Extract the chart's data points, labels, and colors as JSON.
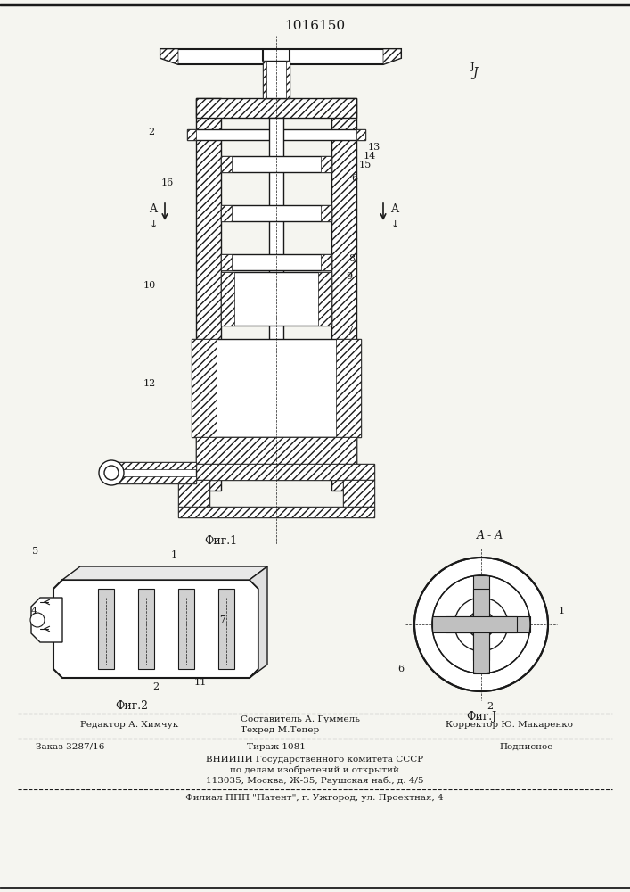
{
  "patent_number": "1016150",
  "background_color": "#f5f5f0",
  "line_color": "#1a1a1a",
  "hatch_color": "#1a1a1a",
  "fig_label1": "Фиг.1",
  "fig_label2": "Фиг.2",
  "fig_label3": "Фиг.J",
  "section_label": "A - A",
  "footer_lines": [
    [
      "Редактор А. Химчук",
      "Составитель А. Гуммель",
      "Корректор Ю. Макаренко"
    ],
    [
      "Техред М.Тепер",
      "",
      ""
    ],
    [
      "Заказ 3287/16",
      "Тираж 1081",
      "Подписное"
    ],
    [
      "ВНИИПИ Государственного комитета СССР",
      "",
      ""
    ],
    [
      "по делам изобретений и открытий",
      "",
      ""
    ],
    [
      "113035, Москва, Ж-35, Раушская наб., д. 4/5",
      "",
      ""
    ],
    [
      "Филиал ППП \"Патент\", г. Ужгород, ул. Проектная, 4",
      "",
      ""
    ]
  ]
}
